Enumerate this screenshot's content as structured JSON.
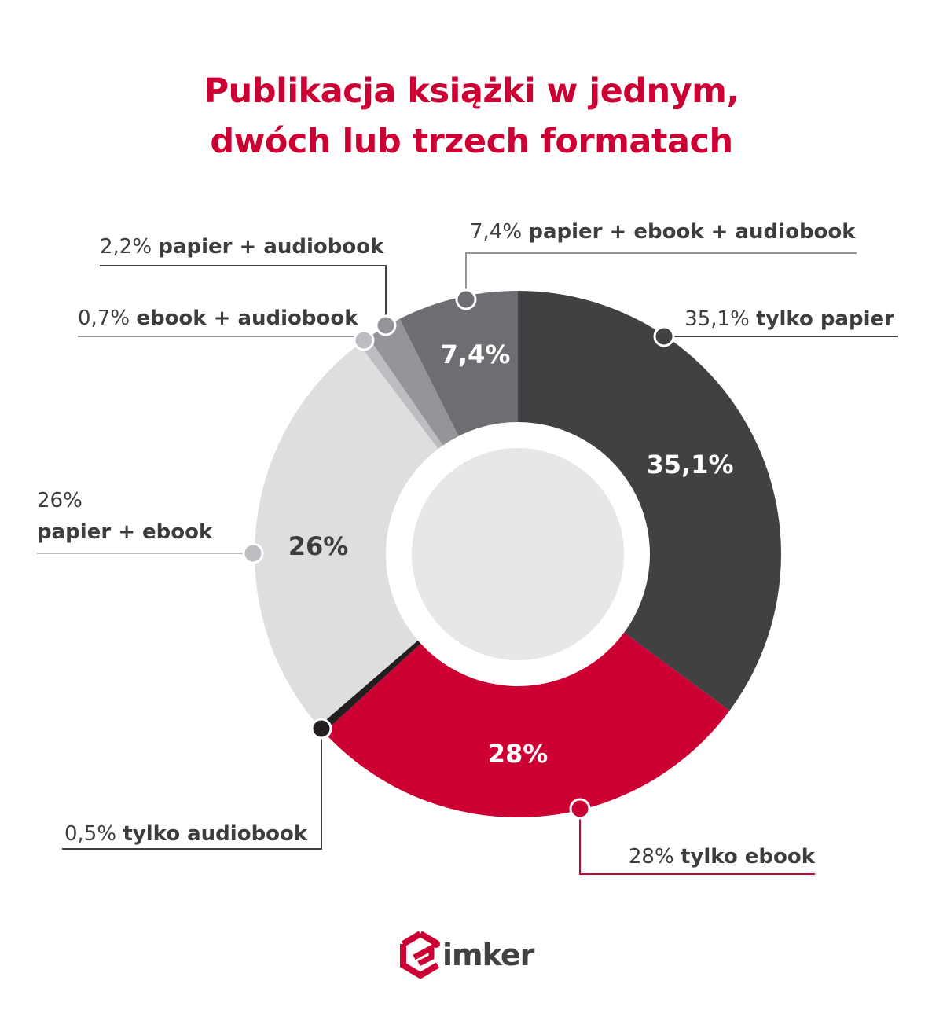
{
  "chart_data": {
    "type": "pie",
    "variant": "donut",
    "title": [
      "Publikacja książki w jednym,",
      "dwóch lub trzech formatach"
    ],
    "series": [
      {
        "value": 35.1,
        "inner_label": "35,1%",
        "label_pct": "35,1%",
        "label_text": "tylko papier",
        "color": "#414143"
      },
      {
        "value": 28,
        "inner_label": "28%",
        "label_pct": "28%",
        "label_text": "tylko ebook",
        "color": "#cc0033"
      },
      {
        "value": 0.5,
        "inner_label": "",
        "label_pct": "0,5%",
        "label_text": "tylko audiobook",
        "color": "#231f20"
      },
      {
        "value": 26,
        "inner_label": "26%",
        "label_pct": "26%",
        "label_text": "papier + ebook",
        "color": "#dededf"
      },
      {
        "value": 0.7,
        "inner_label": "",
        "label_pct": "0,7%",
        "label_text": "ebook + audiobook",
        "color": "#bcbdc0"
      },
      {
        "value": 2.2,
        "inner_label": "",
        "label_pct": "2,2%",
        "label_text": "papier + audiobook",
        "color": "#939598"
      },
      {
        "value": 7.4,
        "inner_label": "7,4%",
        "label_pct": "7,4%",
        "label_text": "papier + ebook + audiobook",
        "color": "#6d6e71"
      }
    ],
    "legend": "callouts"
  },
  "colors": {
    "title": "#cc0033",
    "text": "#3d3d3f",
    "center": "#e6e7e8"
  },
  "logo": {
    "text": "imker",
    "brand_color": "#cc0033"
  }
}
